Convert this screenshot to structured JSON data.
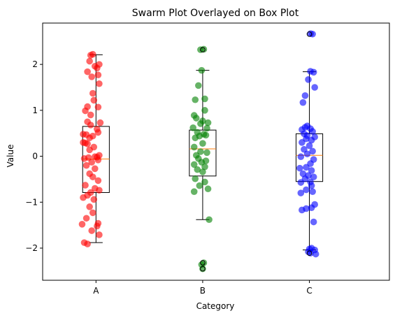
{
  "chart_data": {
    "type": "box",
    "title": "Swarm Plot Overlayed on Box Plot",
    "xlabel": "Category",
    "ylabel": "Value",
    "categories": [
      "A",
      "B",
      "C"
    ],
    "xlim": [
      0.5,
      3.75
    ],
    "ylim": [
      -2.7,
      2.9
    ],
    "y_ticks": [
      -2,
      -1,
      0,
      1,
      2
    ],
    "y_tick_labels": [
      "−2",
      "−1",
      "0",
      "1",
      "2"
    ],
    "grid": false,
    "box_stats": [
      {
        "category": "A",
        "whisker_low": -1.88,
        "q1": -0.79,
        "median": -0.06,
        "q3": 0.65,
        "whisker_high": 2.21,
        "outliers": []
      },
      {
        "category": "B",
        "whisker_low": -1.38,
        "q1": -0.43,
        "median": 0.16,
        "q3": 0.57,
        "whisker_high": 1.87,
        "outliers": [
          2.32,
          -2.32,
          -2.45
        ]
      },
      {
        "category": "C",
        "whisker_low": -2.04,
        "q1": -0.55,
        "median": 0.02,
        "q3": 0.49,
        "whisker_high": 1.84,
        "outliers": [
          2.66,
          -2.11
        ]
      }
    ],
    "series": [
      {
        "category": "A",
        "color": "#ff0000",
        "points": [
          [
            -0.03,
            2.22
          ],
          [
            -0.05,
            2.2
          ],
          [
            -0.06,
            2.07
          ],
          [
            0.03,
            2.0
          ],
          [
            -0.01,
            1.96
          ],
          [
            0.01,
            1.92
          ],
          [
            -0.08,
            1.84
          ],
          [
            0.02,
            1.77
          ],
          [
            -0.04,
            1.73
          ],
          [
            0.03,
            1.58
          ],
          [
            -0.03,
            1.37
          ],
          [
            -0.02,
            1.22
          ],
          [
            -0.08,
            1.08
          ],
          [
            0.02,
            1.07
          ],
          [
            -0.1,
            0.99
          ],
          [
            -0.05,
            0.9
          ],
          [
            -0.08,
            0.75
          ],
          [
            0.04,
            0.73
          ],
          [
            -0.05,
            0.68
          ],
          [
            0.01,
            0.59
          ],
          [
            0.02,
            0.52
          ],
          [
            -0.12,
            0.48
          ],
          [
            -0.09,
            0.47
          ],
          [
            -0.03,
            0.44
          ],
          [
            -0.06,
            0.4
          ],
          [
            -0.12,
            0.3
          ],
          [
            -0.1,
            0.29
          ],
          [
            -0.08,
            0.27
          ],
          [
            -0.02,
            0.2
          ],
          [
            -0.06,
            0.14
          ],
          [
            0.03,
            0.02
          ],
          [
            -0.01,
            -0.01
          ],
          [
            0.01,
            -0.02
          ],
          [
            -0.07,
            -0.03
          ],
          [
            -0.11,
            -0.05
          ],
          [
            0.02,
            -0.08
          ],
          [
            -0.04,
            -0.13
          ],
          [
            -0.09,
            -0.2
          ],
          [
            -0.01,
            -0.27
          ],
          [
            -0.06,
            -0.38
          ],
          [
            -0.03,
            -0.45
          ],
          [
            0.02,
            -0.53
          ],
          [
            -0.1,
            -0.63
          ],
          [
            -0.01,
            -0.7
          ],
          [
            0.03,
            -0.74
          ],
          [
            -0.05,
            -0.79
          ],
          [
            -0.08,
            -0.85
          ],
          [
            -0.12,
            -0.9
          ],
          [
            -0.02,
            -0.94
          ],
          [
            -0.06,
            -1.1
          ],
          [
            -0.03,
            -1.23
          ],
          [
            -0.09,
            -1.35
          ],
          [
            0.02,
            -1.46
          ],
          [
            -0.13,
            -1.48
          ],
          [
            0.01,
            -1.52
          ],
          [
            -0.04,
            -1.62
          ],
          [
            0.03,
            -1.71
          ],
          [
            -0.11,
            -1.88
          ],
          [
            -0.08,
            -1.91
          ]
        ]
      },
      {
        "category": "B",
        "color": "#008000",
        "points": [
          [
            0.01,
            2.33
          ],
          [
            -0.02,
            2.32
          ],
          [
            -0.01,
            1.87
          ],
          [
            -0.04,
            1.54
          ],
          [
            0.02,
            1.25
          ],
          [
            -0.07,
            1.23
          ],
          [
            0.02,
            1.0
          ],
          [
            0.0,
            0.77
          ],
          [
            0.05,
            0.73
          ],
          [
            -0.08,
            0.89
          ],
          [
            -0.06,
            0.83
          ],
          [
            -0.02,
            0.71
          ],
          [
            -0.09,
            0.62
          ],
          [
            0.04,
            0.61
          ],
          [
            -0.05,
            0.52
          ],
          [
            0.01,
            0.48
          ],
          [
            0.03,
            0.46
          ],
          [
            -0.03,
            0.44
          ],
          [
            -0.07,
            0.4
          ],
          [
            0.0,
            0.28
          ],
          [
            -0.08,
            0.2
          ],
          [
            -0.02,
            0.1
          ],
          [
            0.04,
            0.08
          ],
          [
            -0.06,
            0.02
          ],
          [
            -0.04,
            -0.05
          ],
          [
            0.03,
            -0.1
          ],
          [
            -0.01,
            -0.13
          ],
          [
            -0.08,
            -0.18
          ],
          [
            0.02,
            -0.23
          ],
          [
            -0.05,
            -0.29
          ],
          [
            0.0,
            -0.34
          ],
          [
            -0.07,
            -0.49
          ],
          [
            0.02,
            -0.56
          ],
          [
            -0.03,
            -0.64
          ],
          [
            0.05,
            -0.71
          ],
          [
            -0.08,
            -0.77
          ],
          [
            0.06,
            -1.38
          ],
          [
            0.01,
            -2.32
          ],
          [
            -0.01,
            -2.36
          ],
          [
            0.0,
            -2.45
          ]
        ]
      },
      {
        "category": "C",
        "color": "#0000ff",
        "points": [
          [
            0.01,
            2.67
          ],
          [
            0.03,
            2.66
          ],
          [
            0.01,
            1.85
          ],
          [
            0.04,
            1.83
          ],
          [
            -0.01,
            1.67
          ],
          [
            0.05,
            1.5
          ],
          [
            -0.04,
            1.32
          ],
          [
            -0.06,
            1.17
          ],
          [
            -0.02,
            0.66
          ],
          [
            -0.04,
            0.63
          ],
          [
            0.01,
            0.6
          ],
          [
            -0.07,
            0.58
          ],
          [
            0.03,
            0.54
          ],
          [
            -0.05,
            0.49
          ],
          [
            -0.02,
            0.45
          ],
          [
            0.05,
            0.42
          ],
          [
            -0.03,
            0.38
          ],
          [
            0.02,
            0.35
          ],
          [
            -0.07,
            0.3
          ],
          [
            0.0,
            0.23
          ],
          [
            -0.05,
            0.15
          ],
          [
            0.03,
            0.11
          ],
          [
            -0.02,
            0.05
          ],
          [
            -0.08,
            -0.01
          ],
          [
            0.04,
            -0.07
          ],
          [
            0.01,
            -0.16
          ],
          [
            -0.03,
            -0.24
          ],
          [
            -0.09,
            -0.26
          ],
          [
            0.02,
            -0.31
          ],
          [
            -0.06,
            -0.38
          ],
          [
            -0.01,
            -0.42
          ],
          [
            0.04,
            -0.45
          ],
          [
            -0.04,
            -0.49
          ],
          [
            0.01,
            -0.56
          ],
          [
            -0.08,
            -0.57
          ],
          [
            0.02,
            -0.64
          ],
          [
            -0.03,
            -0.73
          ],
          [
            0.03,
            -0.77
          ],
          [
            -0.08,
            -0.8
          ],
          [
            0.05,
            -1.05
          ],
          [
            0.02,
            -1.12
          ],
          [
            -0.03,
            -1.14
          ],
          [
            -0.07,
            -1.17
          ],
          [
            0.04,
            -1.43
          ],
          [
            0.02,
            -2.0
          ],
          [
            0.0,
            -2.02
          ],
          [
            0.05,
            -2.04
          ],
          [
            -0.01,
            -2.08
          ],
          [
            0.01,
            -2.11
          ],
          [
            0.06,
            -2.13
          ]
        ]
      }
    ]
  }
}
